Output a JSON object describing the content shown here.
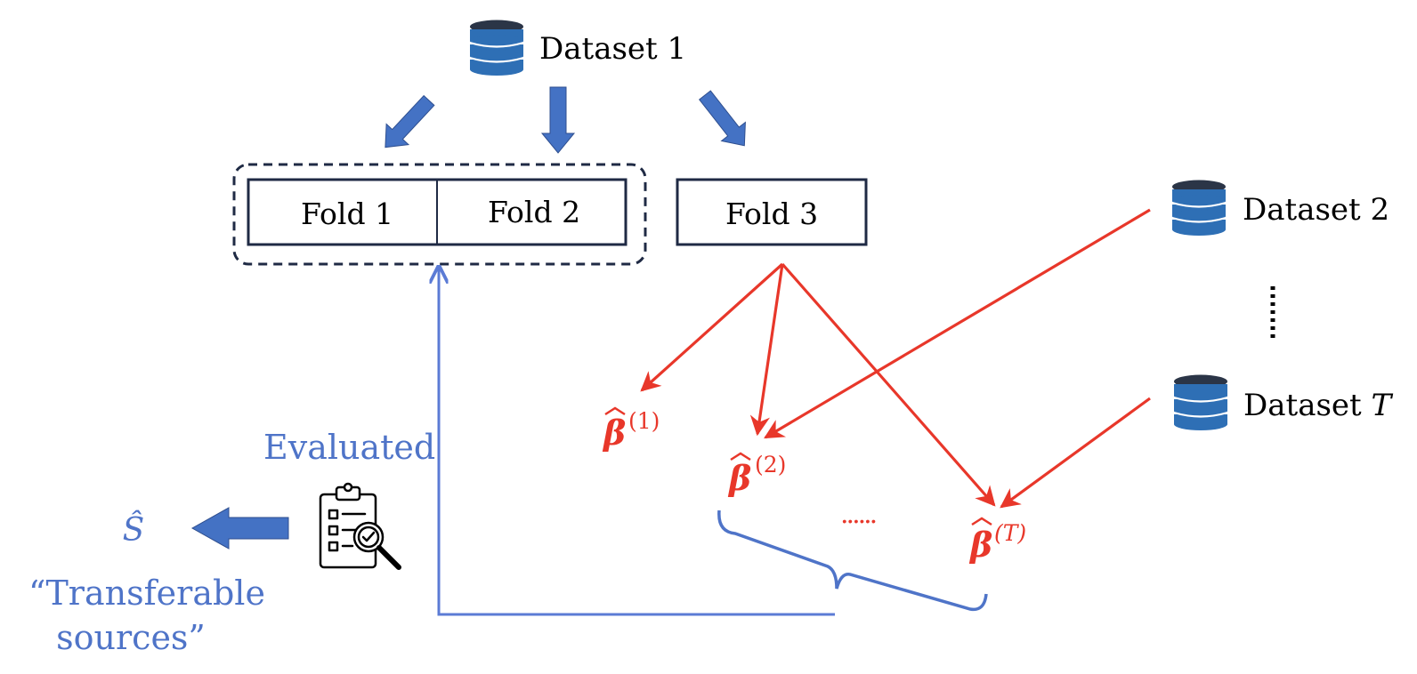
{
  "datasets": {
    "d1": "Dataset 1",
    "d2": "Dataset 2",
    "dT_prefix": "Dataset ",
    "dT_suffix": "T",
    "dots": "⋮"
  },
  "folds": {
    "f1": "Fold 1",
    "f2": "Fold 2",
    "f3": "Fold 3"
  },
  "estimates": [
    {
      "base": "β",
      "sup": "(1)"
    },
    {
      "base": "β",
      "sup": "(2)"
    },
    {
      "base": "β",
      "sup": "(T)"
    }
  ],
  "estimate_ellipsis": "......",
  "evaluated_label": "Evaluated",
  "selected_set": "Ŝ",
  "result_label_line1": "“Transferable",
  "result_label_line2": "sources”",
  "colors": {
    "navy": "#1f2a44",
    "db_blue": "#2e6fb5",
    "db_dark": "#2b3547",
    "arrow_blue": "#4472c4",
    "flow_blue": "#5b7bd5",
    "red": "#e8372a",
    "black": "#000000"
  },
  "icons": [
    "database-icon",
    "checklist-magnifier-icon"
  ]
}
